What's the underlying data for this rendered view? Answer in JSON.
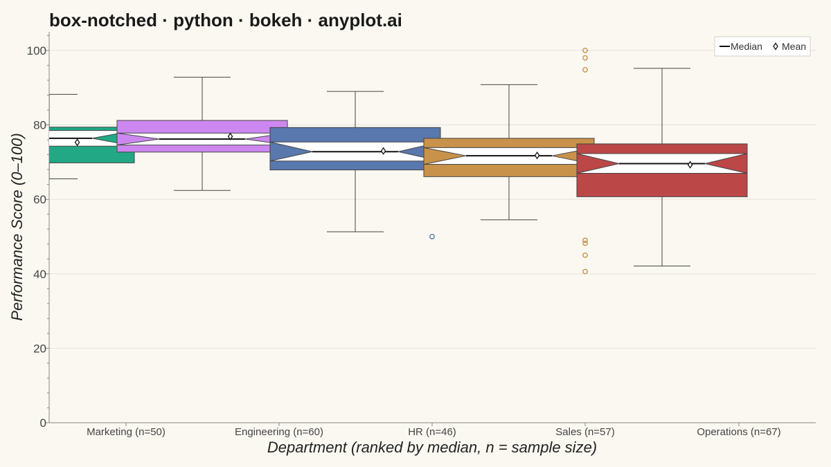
{
  "chart_data": {
    "type": "box-notched",
    "title": "box-notched · python · bokeh · anyplot.ai",
    "xlabel": "Department (ranked by median, n = sample size)",
    "ylabel": "Performance Score (0–100)",
    "ylim": [
      0,
      105
    ],
    "yticks": [
      0,
      20,
      40,
      60,
      80,
      100
    ],
    "grid": true,
    "legend": {
      "placement": "top-right",
      "entries": [
        {
          "label": "Median",
          "marker": "line"
        },
        {
          "label": "Mean",
          "marker": "diamond"
        }
      ]
    },
    "categories": [
      "Marketing (n=50)",
      "Engineering (n=60)",
      "HR (n=46)",
      "Sales (n=57)",
      "Operations (n=67)"
    ],
    "boxes": [
      {
        "name": "Marketing",
        "n": 50,
        "color": "#22A884",
        "whisker_low": 65.5,
        "q1": 69.8,
        "notch_low": 74.3,
        "median": 76.4,
        "notch_high": 78.5,
        "q3": 79.4,
        "whisker_high": 88.2,
        "mean": 75.3,
        "outliers": []
      },
      {
        "name": "Engineering",
        "n": 60,
        "color": "#CC88F0",
        "whisker_low": 62.4,
        "q1": 72.7,
        "notch_low": 74.6,
        "median": 76.2,
        "notch_high": 77.8,
        "q3": 81.2,
        "whisker_high": 92.8,
        "mean": 76.9,
        "outliers": []
      },
      {
        "name": "HR",
        "n": 46,
        "color": "#5878AE",
        "whisker_low": 51.3,
        "q1": 67.9,
        "notch_low": 70.3,
        "median": 72.8,
        "notch_high": 75.4,
        "q3": 79.3,
        "whisker_high": 89.0,
        "mean": 73.0,
        "outliers": [
          50.0
        ]
      },
      {
        "name": "Sales",
        "n": 57,
        "color": "#C8924A",
        "whisker_low": 54.5,
        "q1": 66.1,
        "notch_low": 69.4,
        "median": 71.7,
        "notch_high": 73.9,
        "q3": 76.4,
        "whisker_high": 90.8,
        "mean": 71.8,
        "outliers": [
          100.0,
          98.0,
          94.8,
          49.0,
          48.2,
          45.0,
          40.6
        ]
      },
      {
        "name": "Operations",
        "n": 67,
        "color": "#BC4747",
        "whisker_low": 42.1,
        "q1": 60.7,
        "notch_low": 67.0,
        "median": 69.6,
        "notch_high": 72.3,
        "q3": 74.9,
        "whisker_high": 95.2,
        "mean": 69.3,
        "outliers": []
      }
    ]
  }
}
